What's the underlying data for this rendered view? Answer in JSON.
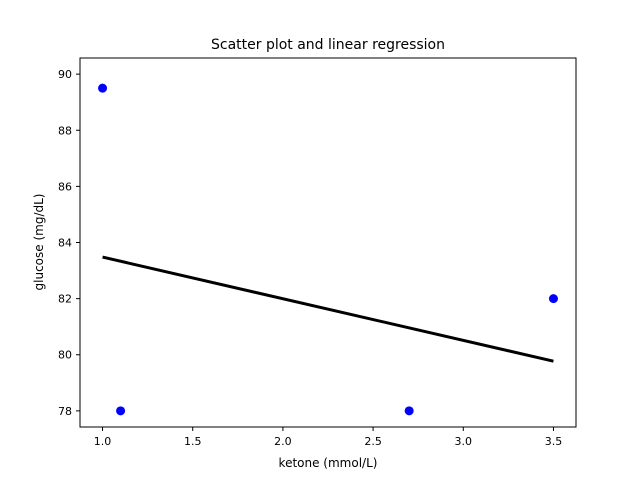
{
  "chart_data": {
    "type": "scatter",
    "title": "Scatter plot and linear regression",
    "xlabel": "ketone (mmol/L)",
    "ylabel": "glucose (mg/dL)",
    "xlim": [
      0.875,
      3.625
    ],
    "ylim": [
      77.425,
      90.575
    ],
    "xticks": [
      1.0,
      1.5,
      2.0,
      2.5,
      3.0,
      3.5
    ],
    "xtick_labels": [
      "1.0",
      "1.5",
      "2.0",
      "2.5",
      "3.0",
      "3.5"
    ],
    "yticks": [
      78,
      80,
      82,
      84,
      86,
      88,
      90
    ],
    "ytick_labels": [
      "78",
      "80",
      "82",
      "84",
      "86",
      "88",
      "90"
    ],
    "grid": false,
    "points": {
      "x": [
        1.0,
        1.1,
        2.7,
        3.5
      ],
      "y": [
        89.5,
        78.0,
        78.0,
        82.0
      ],
      "color": "#0000ff"
    },
    "regression_line": {
      "x": [
        1.0,
        3.5
      ],
      "y": [
        83.48,
        79.77
      ],
      "color": "#000000"
    }
  }
}
